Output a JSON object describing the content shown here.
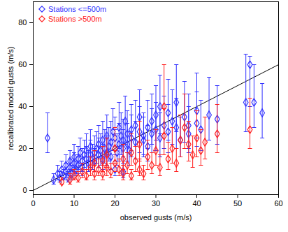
{
  "chart_data": {
    "type": "scatter",
    "x_label": "observed gusts (m/s)",
    "y_label": "recalibrated model gusts (m/s)",
    "xlim": [
      0,
      60
    ],
    "ylim": [
      -2,
      90
    ],
    "xticks": [
      0,
      10,
      20,
      30,
      40,
      50,
      60
    ],
    "yticks": [
      0,
      20,
      40,
      60,
      80
    ],
    "legend": "top-left",
    "reference_line": {
      "x": [
        0,
        60
      ],
      "values": [
        0,
        60
      ],
      "color": "#000000"
    },
    "series": [
      {
        "name": "Stations <=500m",
        "color": "#3333ff",
        "marker": "diamond",
        "x": [
          3.5,
          5,
          6,
          6.5,
          7,
          7.5,
          8,
          8,
          8.5,
          9,
          9,
          9.5,
          10,
          10,
          10.5,
          11,
          11,
          11.5,
          12,
          12,
          12.5,
          13,
          13,
          13.5,
          14,
          14,
          14.5,
          15,
          15,
          15.5,
          16,
          16,
          16.5,
          17,
          17,
          17.5,
          18,
          18,
          18.5,
          19,
          19,
          19.5,
          20,
          20,
          20.5,
          21,
          21,
          21.5,
          22,
          22,
          22.5,
          23,
          23,
          23.5,
          24,
          24,
          25,
          25,
          26,
          26,
          27,
          27,
          28,
          28,
          29,
          29,
          30,
          30,
          31,
          31,
          32,
          33,
          33,
          34,
          35,
          35,
          36,
          37,
          38,
          38,
          40,
          40,
          41,
          43,
          45,
          52,
          53,
          54,
          56,
          20,
          22
        ],
        "values": [
          25,
          5,
          8,
          6,
          10,
          7,
          12,
          9,
          6,
          14,
          11,
          8,
          13,
          16,
          10,
          15,
          12,
          18,
          14,
          11,
          17,
          15,
          19,
          13,
          17,
          21,
          15,
          18,
          14,
          20,
          17,
          22,
          19,
          15,
          24,
          20,
          18,
          26,
          21,
          16,
          23,
          28,
          20,
          25,
          18,
          22,
          30,
          26,
          20,
          24,
          33,
          27,
          22,
          19,
          29,
          25,
          31,
          23,
          28,
          35,
          26,
          24,
          30,
          21,
          33,
          27,
          29,
          36,
          25,
          40,
          31,
          28,
          37,
          33,
          30,
          42,
          24,
          35,
          31,
          27,
          38,
          32,
          29,
          36,
          34,
          42,
          60,
          42,
          37,
          10,
          9
        ],
        "error_low": [
          18,
          3,
          5,
          4,
          7,
          5,
          8,
          6,
          4,
          10,
          7,
          5,
          9,
          11,
          7,
          10,
          8,
          12,
          9,
          7,
          11,
          10,
          13,
          9,
          11,
          14,
          10,
          12,
          9,
          13,
          11,
          15,
          12,
          10,
          16,
          13,
          12,
          17,
          14,
          10,
          15,
          19,
          13,
          17,
          12,
          14,
          20,
          17,
          13,
          16,
          22,
          18,
          14,
          12,
          19,
          16,
          21,
          15,
          18,
          23,
          17,
          16,
          20,
          14,
          22,
          18,
          19,
          24,
          16,
          27,
          20,
          18,
          24,
          22,
          20,
          28,
          16,
          23,
          20,
          18,
          25,
          21,
          19,
          24,
          22,
          28,
          40,
          30,
          25,
          7,
          6
        ],
        "error_high": [
          37,
          8,
          12,
          9,
          14,
          10,
          17,
          13,
          9,
          19,
          15,
          12,
          18,
          22,
          14,
          21,
          17,
          25,
          20,
          16,
          24,
          21,
          27,
          19,
          24,
          29,
          22,
          26,
          20,
          28,
          25,
          31,
          27,
          22,
          33,
          29,
          26,
          36,
          30,
          24,
          33,
          39,
          29,
          35,
          27,
          32,
          42,
          37,
          29,
          34,
          45,
          38,
          32,
          28,
          41,
          36,
          43,
          33,
          40,
          48,
          37,
          35,
          43,
          31,
          46,
          39,
          42,
          50,
          37,
          55,
          45,
          41,
          53,
          48,
          44,
          60,
          35,
          52,
          46,
          40,
          56,
          47,
          43,
          54,
          50,
          65,
          64,
          60,
          51,
          14,
          13
        ]
      },
      {
        "name": "Stations >500m",
        "color": "#ff2020",
        "marker": "diamond",
        "x": [
          7,
          9,
          10,
          11,
          12,
          13,
          14,
          15,
          15,
          16,
          17,
          17,
          18,
          18,
          19,
          20,
          20,
          21,
          22,
          22,
          23,
          24,
          24,
          25,
          26,
          26,
          27,
          28,
          29,
          30,
          31,
          32,
          32,
          33,
          34,
          35,
          36,
          37,
          38,
          39,
          40,
          41,
          42,
          45,
          53
        ],
        "values": [
          4,
          5,
          7,
          6,
          9,
          7,
          11,
          8,
          13,
          10,
          8,
          14,
          11,
          17,
          9,
          13,
          20,
          10,
          15,
          8,
          12,
          18,
          7,
          14,
          10,
          22,
          8,
          16,
          12,
          19,
          11,
          26,
          40,
          15,
          20,
          13,
          24,
          30,
          22,
          17,
          25,
          19,
          23,
          27,
          29
        ],
        "error_low": [
          3,
          3,
          5,
          4,
          6,
          5,
          7,
          5,
          9,
          7,
          5,
          9,
          7,
          11,
          6,
          9,
          13,
          7,
          10,
          5,
          8,
          12,
          5,
          9,
          7,
          14,
          5,
          10,
          8,
          12,
          7,
          17,
          27,
          10,
          13,
          9,
          16,
          20,
          14,
          11,
          16,
          12,
          15,
          18,
          20
        ],
        "error_high": [
          6,
          8,
          10,
          9,
          13,
          10,
          16,
          12,
          19,
          15,
          12,
          21,
          16,
          25,
          13,
          19,
          30,
          15,
          22,
          12,
          18,
          27,
          10,
          21,
          15,
          33,
          12,
          24,
          18,
          29,
          17,
          39,
          60,
          23,
          30,
          20,
          36,
          46,
          33,
          26,
          38,
          29,
          35,
          41,
          44
        ]
      }
    ]
  }
}
